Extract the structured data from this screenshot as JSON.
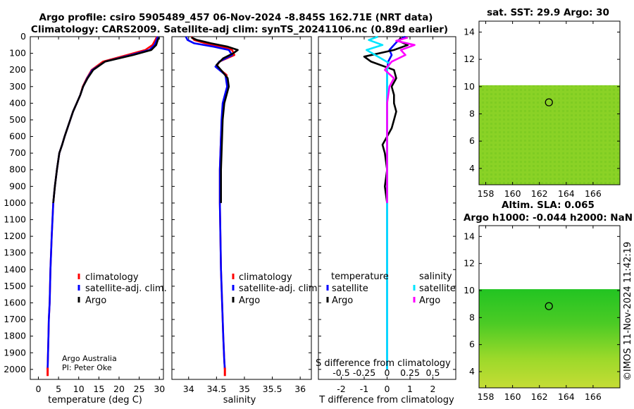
{
  "title": {
    "line1": "Argo profile: csiro 5905489_457 06-Nov-2024 -8.845S 162.71E (NRT data)",
    "line2": "Climatology: CARS2009. Satellite-adj clim: synTS_20241106.nc (0.89d earlier)"
  },
  "credits": {
    "org": "Argo Australia",
    "pi": "PI: Peter Oke"
  },
  "timestamp": "©IMOS 11-Nov-2024 11:42:19",
  "colors": {
    "climatology": "#ff0000",
    "satellite": "#0000ff",
    "argo": "#000000",
    "sat_salinity": "#00e5ff",
    "argo_salinity": "#ff00ff",
    "map_green": "#27c427",
    "map_yellow": "#b5e61d"
  },
  "legend": {
    "climatology": "climatology",
    "satellite": "satellite-adj. clim.",
    "argo": "Argo",
    "temperature": "temperature",
    "salinity": "salinity",
    "satellite_short": "satellite"
  },
  "depth_ticks": [
    0,
    100,
    200,
    300,
    400,
    500,
    600,
    700,
    800,
    900,
    1000,
    1100,
    1200,
    1300,
    1400,
    1500,
    1600,
    1700,
    1800,
    1900,
    2000
  ],
  "chart_data": [
    {
      "type": "line",
      "name": "temperature profile",
      "xlabel": "temperature (deg C)",
      "ylabel": "depth",
      "xlim": [
        -2,
        31
      ],
      "ylim": [
        2060,
        0
      ],
      "xticks": [
        0,
        5,
        10,
        15,
        20,
        25,
        30
      ],
      "series": [
        {
          "name": "climatology",
          "color": "#ff0000",
          "x": [
            29.4,
            29.0,
            28.3,
            26.5,
            22.0,
            16.0,
            13.2,
            12.0,
            11.0,
            10.4,
            9.5,
            8.6,
            7.9,
            7.2,
            6.5,
            5.9,
            5.2,
            4.6,
            4.1,
            3.7,
            3.3,
            3.0,
            2.8,
            2.6,
            2.5,
            2.4,
            2.3
          ],
          "y": [
            0,
            20,
            50,
            80,
            110,
            150,
            200,
            250,
            300,
            350,
            400,
            450,
            500,
            550,
            600,
            650,
            700,
            800,
            900,
            1000,
            1200,
            1400,
            1600,
            1700,
            1800,
            1900,
            2000
          ]
        },
        {
          "name": "satellite-adj. clim.",
          "color": "#0000ff",
          "x": [
            29.6,
            29.3,
            28.8,
            27.5,
            23.0,
            16.5,
            13.4,
            12.1,
            11.1,
            10.4,
            9.5,
            8.6,
            7.9,
            7.2,
            6.5,
            5.9,
            5.2,
            4.6,
            4.1,
            3.7,
            3.3,
            3.0,
            2.8,
            2.6,
            2.5,
            2.4,
            2.3
          ],
          "y": [
            0,
            20,
            50,
            80,
            110,
            150,
            200,
            250,
            300,
            350,
            400,
            450,
            500,
            550,
            600,
            650,
            700,
            800,
            900,
            1000,
            1200,
            1400,
            1600,
            1700,
            1800,
            1900,
            2000
          ]
        },
        {
          "name": "Argo",
          "color": "#000000",
          "x": [
            29.9,
            29.6,
            29.2,
            28.0,
            23.5,
            16.5,
            13.6,
            12.2,
            11.1,
            10.4,
            9.5,
            8.6,
            7.9,
            7.2,
            6.5,
            5.9,
            5.2,
            4.6,
            4.1,
            3.7
          ],
          "y": [
            5,
            20,
            50,
            80,
            110,
            150,
            200,
            250,
            300,
            350,
            400,
            450,
            500,
            550,
            600,
            650,
            700,
            800,
            900,
            1000
          ]
        }
      ]
    },
    {
      "type": "line",
      "name": "salinity profile",
      "xlabel": "salinity",
      "xlim": [
        33.7,
        36.2
      ],
      "ylim": [
        2060,
        0
      ],
      "xticks": [
        34,
        34.5,
        35,
        35.5,
        36
      ],
      "series": [
        {
          "name": "climatology",
          "color": "#ff0000",
          "x": [
            34.05,
            34.1,
            34.3,
            34.6,
            34.78,
            34.82,
            34.55,
            34.5,
            34.68,
            34.7,
            34.66,
            34.62,
            34.6,
            34.58,
            34.57,
            34.56,
            34.56,
            34.56,
            34.57,
            34.58,
            34.6,
            34.62,
            34.64,
            34.65
          ],
          "y": [
            0,
            20,
            40,
            60,
            80,
            110,
            150,
            180,
            230,
            300,
            350,
            400,
            500,
            600,
            700,
            800,
            900,
            1000,
            1200,
            1400,
            1600,
            1800,
            1950,
            2000
          ]
        },
        {
          "name": "satellite-adj. clim.",
          "color": "#0000ff",
          "x": [
            33.95,
            33.98,
            34.1,
            34.45,
            34.72,
            34.78,
            34.55,
            34.48,
            34.66,
            34.69,
            34.65,
            34.61,
            34.59,
            34.58,
            34.57,
            34.56,
            34.56,
            34.56,
            34.57,
            34.58,
            34.6,
            34.62,
            34.64,
            34.65
          ],
          "y": [
            0,
            20,
            40,
            60,
            80,
            110,
            150,
            180,
            230,
            300,
            350,
            400,
            500,
            600,
            700,
            800,
            900,
            1000,
            1200,
            1400,
            1600,
            1800,
            1950,
            2000
          ]
        },
        {
          "name": "Argo",
          "color": "#000000",
          "x": [
            34.05,
            34.15,
            34.4,
            34.7,
            34.88,
            34.8,
            34.62,
            34.5,
            34.58,
            34.7,
            34.72,
            34.68,
            34.64,
            34.61,
            34.6,
            34.59,
            34.58,
            34.58,
            34.58
          ],
          "y": [
            5,
            20,
            40,
            60,
            80,
            100,
            130,
            170,
            200,
            250,
            300,
            350,
            400,
            500,
            600,
            700,
            800,
            900,
            1000
          ]
        }
      ]
    },
    {
      "type": "line",
      "name": "difference from climatology",
      "xlabel": "T difference from climatology",
      "xlabel_top": "S difference from climatology",
      "xlim": [
        -3,
        3
      ],
      "ylim": [
        2060,
        0
      ],
      "xticks": [
        -2,
        -1,
        0,
        1,
        2
      ],
      "xticks_s_labels": [
        "-0.5",
        "-0.25",
        "0",
        "0.25",
        "0.5"
      ],
      "series": [
        {
          "name": "temperature satellite",
          "color": "#0000ff",
          "x": [
            0.8,
            0.5,
            0.3,
            0.1,
            0.2,
            0.05,
            0.0,
            0.0,
            0.0,
            0.0,
            0.0,
            0.0,
            0.0,
            0.0,
            0.0,
            0.0,
            0.0
          ],
          "y": [
            0,
            20,
            50,
            80,
            110,
            150,
            200,
            300,
            500,
            700,
            900,
            1100,
            1300,
            1500,
            1700,
            1900,
            2000
          ]
        },
        {
          "name": "temperature Argo",
          "color": "#000000",
          "x": [
            0.6,
            0.5,
            0.9,
            0.3,
            -1.0,
            -0.7,
            0.3,
            0.4,
            0.2,
            0.3,
            0.3,
            0.4,
            0.3,
            0.2,
            0.0,
            -0.2,
            -0.1,
            0.0,
            -0.1,
            0.0
          ],
          "y": [
            5,
            25,
            50,
            80,
            120,
            150,
            200,
            250,
            300,
            350,
            400,
            450,
            500,
            550,
            600,
            650,
            700,
            800,
            900,
            1000
          ]
        },
        {
          "name": "salinity satellite",
          "color": "#00e5ff",
          "x": [
            -0.4,
            -0.8,
            -0.2,
            -0.9,
            -0.4,
            0.1,
            0.0,
            0.0,
            0.0,
            0.0,
            0.0,
            0.0,
            0.0,
            0.0,
            0.0
          ],
          "y": [
            0,
            20,
            50,
            80,
            120,
            160,
            200,
            300,
            500,
            700,
            900,
            1200,
            1500,
            1800,
            2000
          ]
        },
        {
          "name": "salinity Argo",
          "color": "#ff00ff",
          "x": [
            0.9,
            0.4,
            1.2,
            0.6,
            0.8,
            0.2,
            -0.1,
            0.3,
            0.1,
            0.0,
            0.0,
            0.0,
            0.0,
            0.0
          ],
          "y": [
            5,
            25,
            50,
            80,
            110,
            150,
            200,
            250,
            300,
            400,
            600,
            800,
            900,
            1000
          ]
        }
      ]
    },
    {
      "type": "heatmap",
      "name": "SST map",
      "title": "sat. SST: 29.9 Argo: 30",
      "xlim": [
        157.5,
        168.0
      ],
      "ylim": [
        2.8,
        14.8
      ],
      "xticks": [
        158,
        160,
        162,
        164,
        166
      ],
      "yticks": [
        4,
        6,
        8,
        10,
        12,
        14
      ],
      "data_top": 10.1,
      "argo_location": [
        162.71,
        8.845
      ]
    },
    {
      "type": "heatmap",
      "name": "SLA map",
      "title": "Altim. SLA: 0.065",
      "subtitle": "Argo h1000: -0.044 h2000: NaN",
      "xlim": [
        157.5,
        168.0
      ],
      "ylim": [
        2.8,
        14.8
      ],
      "xticks": [
        158,
        160,
        162,
        164,
        166
      ],
      "yticks": [
        4,
        6,
        8,
        10,
        12,
        14
      ],
      "data_top": 10.1,
      "argo_location": [
        162.71,
        8.845
      ]
    }
  ]
}
